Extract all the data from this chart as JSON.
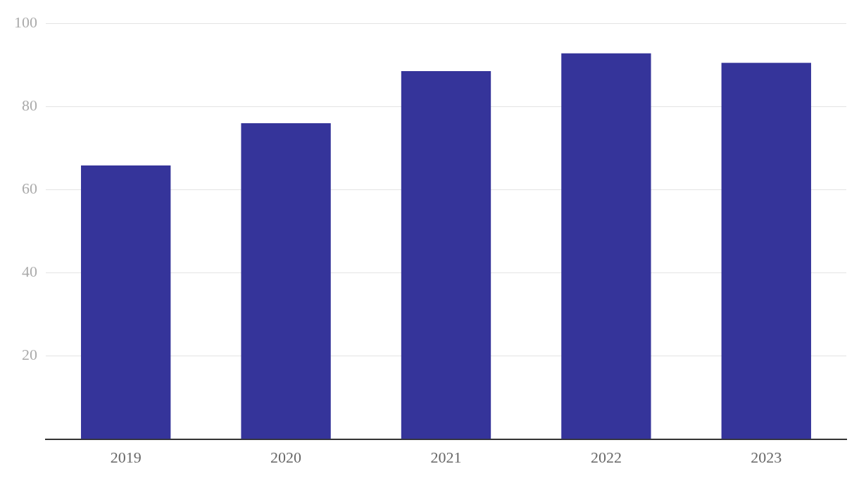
{
  "chart_data": {
    "type": "bar",
    "categories": [
      "2019",
      "2020",
      "2021",
      "2022",
      "2023"
    ],
    "values": [
      65.8,
      76,
      88.5,
      92.8,
      90.5
    ],
    "color": "#35349a",
    "ylim": [
      0,
      100
    ],
    "yticks": [
      20,
      40,
      60,
      80,
      100
    ],
    "grid": "y",
    "legend": false
  }
}
